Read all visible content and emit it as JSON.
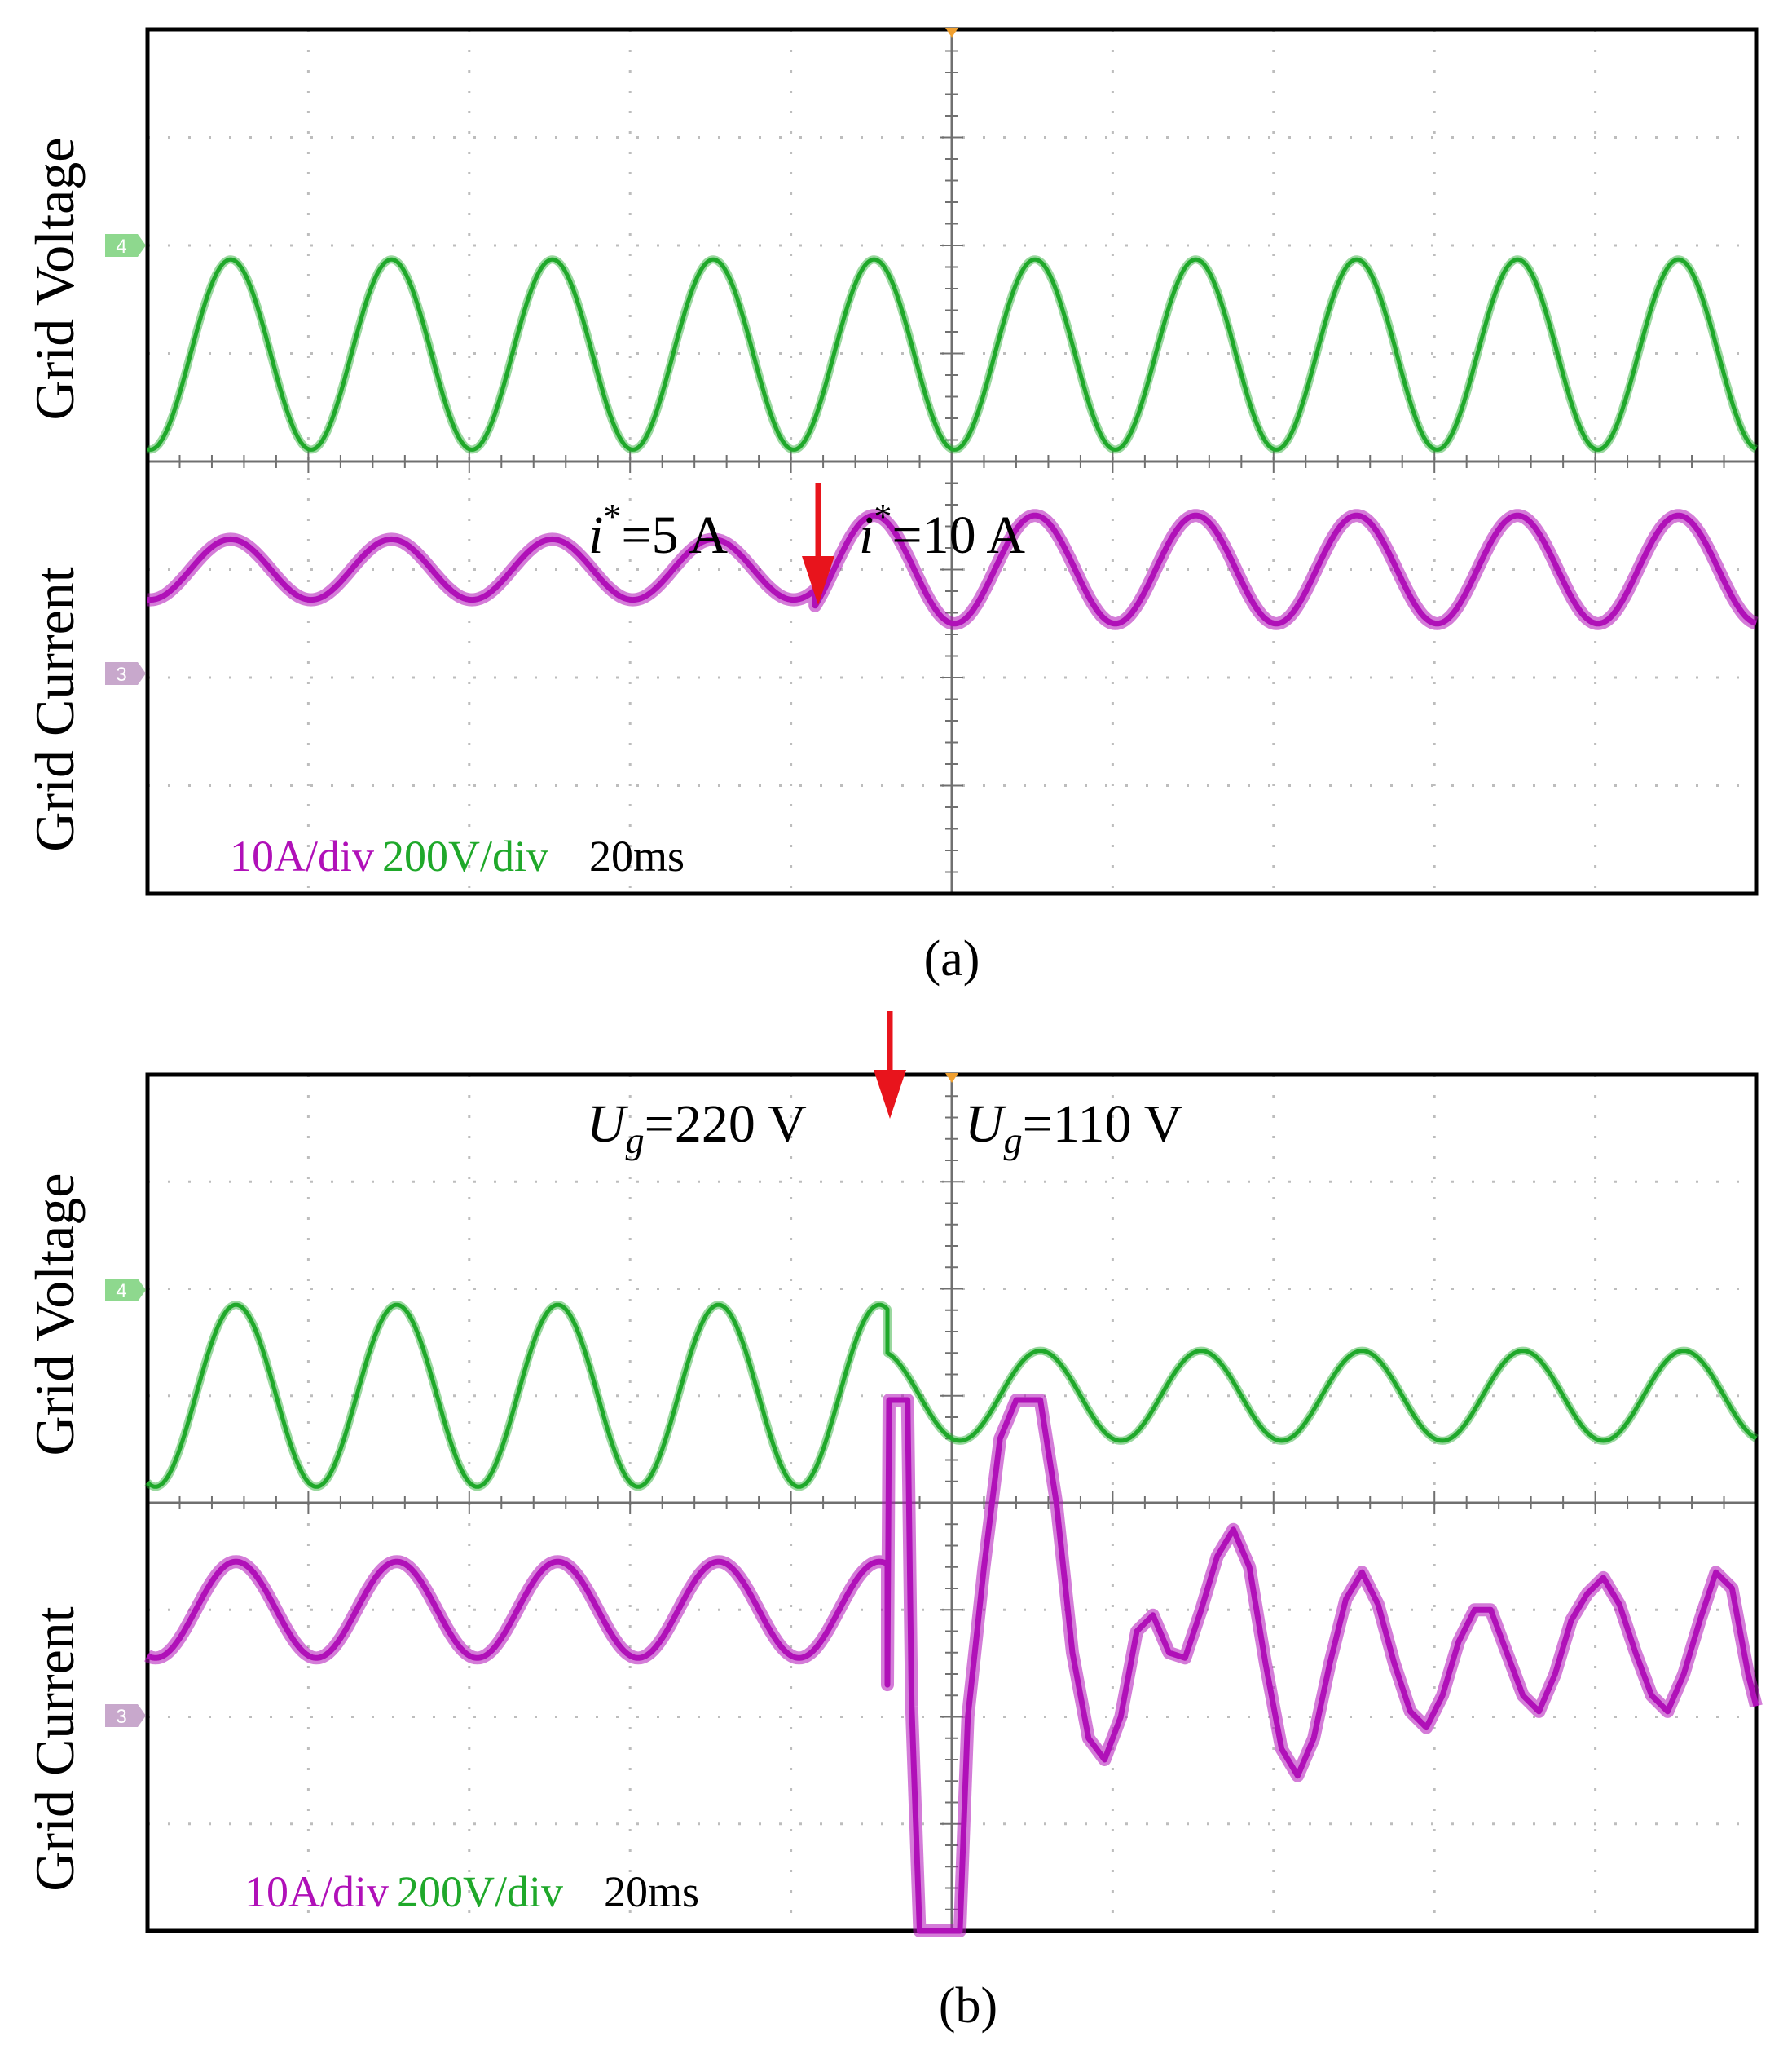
{
  "colors": {
    "voltage": "#1fa82a",
    "current": "#b010b8",
    "arrow": "#e8141c",
    "grid": "#bdbdbd",
    "frame": "#000000",
    "marker_orange": "#f0a030"
  },
  "chart_data": [
    {
      "type": "line",
      "caption": "(a)",
      "grid": true,
      "divisions": {
        "x": 10,
        "y": 8
      },
      "time_per_div": "20ms",
      "x_range_ms": [
        0,
        200
      ],
      "event_time_ms": 83,
      "traces": [
        {
          "label": "Grid Voltage",
          "channel": "4",
          "color": "#1fa82a",
          "scale_text": "200V/div",
          "offset_div": 0.99,
          "segments": [
            {
              "t_start_ms": 0,
              "t_end_ms": 200,
              "amp_div": 0.88,
              "freq_hz": 50,
              "phase_deg": -96
            }
          ]
        },
        {
          "label": "Grid Current",
          "channel": "3",
          "color": "#b010b8",
          "scale_text": "10A/div",
          "offset_div": -1.0,
          "segments": [
            {
              "t_start_ms": 0,
              "t_end_ms": 83,
              "amp_div": 0.28,
              "freq_hz": 50,
              "phase_deg": -96
            },
            {
              "t_start_ms": 83,
              "t_end_ms": 200,
              "amp_div": 0.5,
              "freq_hz": 50,
              "phase_deg": -96
            }
          ]
        }
      ],
      "annotations": [
        {
          "sym": "i",
          "sup": "*",
          "text": "=5 A"
        },
        {
          "sym": "i",
          "sup": "*",
          "text": "=10 A"
        }
      ]
    },
    {
      "type": "line",
      "caption": "(b)",
      "grid": true,
      "divisions": {
        "x": 10,
        "y": 8
      },
      "time_per_div": "20ms",
      "x_range_ms": [
        0,
        200
      ],
      "event_time_ms": 92,
      "traces": [
        {
          "label": "Grid Voltage",
          "channel": "4",
          "color": "#1fa82a",
          "scale_text": "200V/div",
          "offset_div": 1.0,
          "segments": [
            {
              "t_start_ms": 0,
              "t_end_ms": 92,
              "amp_div": 0.85,
              "freq_hz": 50,
              "phase_deg": -108
            },
            {
              "t_start_ms": 92,
              "t_end_ms": 200,
              "amp_div": 0.42,
              "freq_hz": 50,
              "phase_deg": -108
            }
          ]
        },
        {
          "label": "Grid Current",
          "channel": "3",
          "color": "#b010b8",
          "scale_text": "10A/div",
          "offset_div": -1.0,
          "segments": [
            {
              "t_start_ms": 0,
              "t_end_ms": 92,
              "amp_div": 0.45,
              "freq_hz": 50,
              "phase_deg": -108
            }
          ],
          "transient_points": [
            [
              92,
              -0.7
            ],
            [
              92.2,
              1.96
            ],
            [
              94.5,
              1.96
            ],
            [
              95,
              -0.9
            ],
            [
              96,
              -3.0
            ],
            [
              101,
              -3.0
            ],
            [
              102,
              -1.0
            ],
            [
              104,
              0.4
            ],
            [
              106,
              1.6
            ],
            [
              108,
              1.96
            ],
            [
              111,
              1.96
            ],
            [
              113,
              1.0
            ],
            [
              115,
              -0.4
            ],
            [
              117,
              -1.2
            ],
            [
              119,
              -1.4
            ],
            [
              121,
              -1.0
            ],
            [
              123,
              -0.2
            ],
            [
              125,
              -0.05
            ],
            [
              127,
              -0.4
            ],
            [
              129,
              -0.45
            ],
            [
              131,
              0.0
            ],
            [
              133,
              0.5
            ],
            [
              135,
              0.75
            ],
            [
              137,
              0.4
            ],
            [
              139,
              -0.5
            ],
            [
              141,
              -1.3
            ],
            [
              143,
              -1.55
            ],
            [
              145,
              -1.2
            ],
            [
              147,
              -0.5
            ],
            [
              149,
              0.1
            ],
            [
              151,
              0.35
            ],
            [
              153,
              0.05
            ],
            [
              155,
              -0.5
            ],
            [
              157,
              -0.95
            ],
            [
              159,
              -1.1
            ],
            [
              161,
              -0.8
            ],
            [
              163,
              -0.3
            ],
            [
              165,
              0.0
            ],
            [
              167,
              0.0
            ],
            [
              169,
              -0.4
            ],
            [
              171,
              -0.8
            ],
            [
              173,
              -0.95
            ],
            [
              175,
              -0.6
            ],
            [
              177,
              -0.1
            ],
            [
              179,
              0.15
            ],
            [
              181,
              0.3
            ],
            [
              183,
              0.05
            ],
            [
              185,
              -0.4
            ],
            [
              187,
              -0.8
            ],
            [
              189,
              -0.95
            ],
            [
              191,
              -0.6
            ],
            [
              193,
              -0.1
            ],
            [
              195,
              0.35
            ],
            [
              197,
              0.2
            ],
            [
              199,
              -0.6
            ],
            [
              200,
              -0.9
            ]
          ]
        }
      ],
      "annotations": [
        {
          "sym": "U",
          "sub": "g",
          "text": "=220 V"
        },
        {
          "sym": "U",
          "sub": "g",
          "text": "=110 V"
        }
      ]
    }
  ]
}
